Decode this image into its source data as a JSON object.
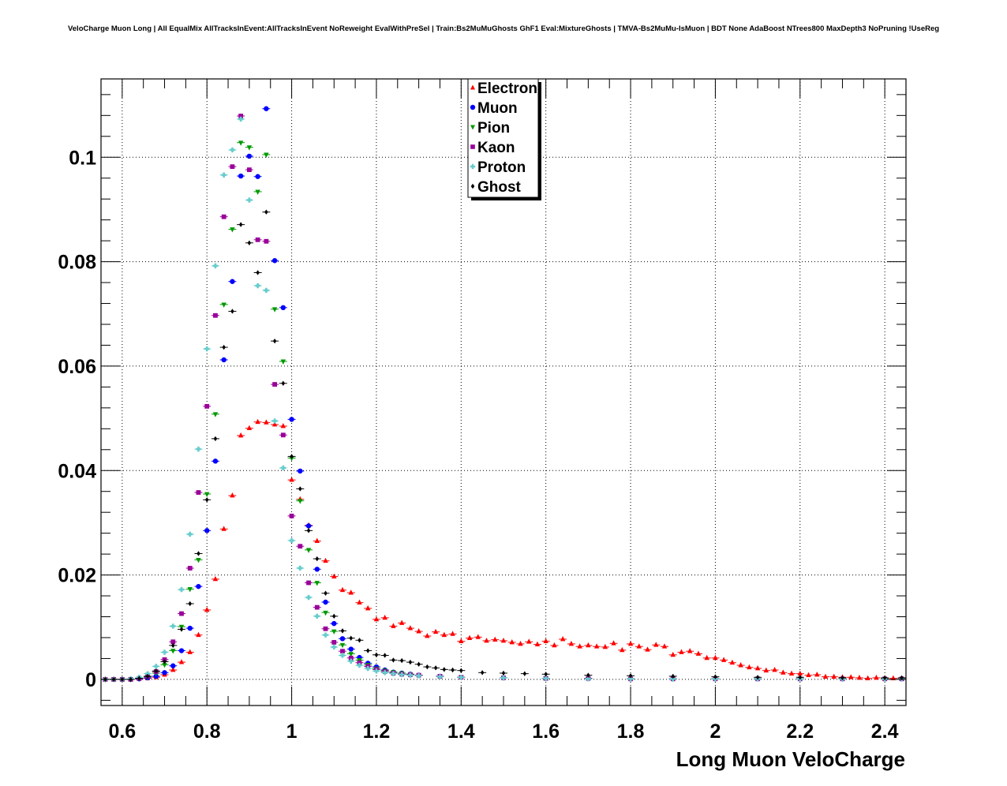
{
  "title": "VeloCharge Muon Long | All EqualMix AllTracksInEvent:AllTracksInEvent NoReweight EvalWithPreSel | Train:Bs2MuMuGhosts GhF1 Eval:MixtureGhosts | TMVA-Bs2MuMu-IsMuon | BDT None AdaBoost NTrees800 MaxDepth3 NoPruning !UseReg",
  "colors": {
    "Electron": "#ff0000",
    "Muon": "#0000ff",
    "Pion": "#009900",
    "Kaon": "#990099",
    "Proton": "#66cccc",
    "Ghost": "#000000"
  },
  "chart_data": {
    "type": "scatter",
    "title": "VeloCharge Muon Long | All EqualMix AllTracksInEvent:AllTracksInEvent NoReweight EvalWithPreSel | Train:Bs2MuMuGhosts GhF1 Eval:MixtureGhosts | TMVA-Bs2MuMu-IsMuon | BDT None AdaBoost NTrees800 MaxDepth3 NoPruning !UseReg",
    "xlabel": "Long Muon VeloCharge",
    "ylabel": "",
    "xlim": [
      0.55,
      2.45
    ],
    "ylim": [
      -0.005,
      0.115
    ],
    "grid": true,
    "legend_position": "top-center",
    "x_ticks": [
      "0.6",
      "0.8",
      "1",
      "1.2",
      "1.4",
      "1.6",
      "1.8",
      "2",
      "2.2",
      "2.4"
    ],
    "y_ticks": [
      "0",
      "0.02",
      "0.04",
      "0.06",
      "0.08",
      "0.1"
    ],
    "series": [
      {
        "name": "Electron",
        "marker": "triangle-up",
        "x": [
          0.56,
          0.58,
          0.6,
          0.62,
          0.64,
          0.66,
          0.68,
          0.7,
          0.72,
          0.74,
          0.76,
          0.78,
          0.8,
          0.82,
          0.84,
          0.86,
          0.88,
          0.9,
          0.92,
          0.94,
          0.96,
          0.98,
          1.0,
          1.02,
          1.04,
          1.06,
          1.08,
          1.1,
          1.12,
          1.14,
          1.16,
          1.18,
          1.2,
          1.22,
          1.24,
          1.26,
          1.28,
          1.3,
          1.32,
          1.34,
          1.36,
          1.38,
          1.4,
          1.42,
          1.44,
          1.46,
          1.48,
          1.5,
          1.52,
          1.54,
          1.56,
          1.58,
          1.6,
          1.62,
          1.64,
          1.66,
          1.68,
          1.7,
          1.72,
          1.74,
          1.76,
          1.78,
          1.8,
          1.82,
          1.84,
          1.86,
          1.88,
          1.9,
          1.92,
          1.94,
          1.96,
          1.98,
          2.0,
          2.02,
          2.04,
          2.06,
          2.08,
          2.1,
          2.12,
          2.14,
          2.16,
          2.18,
          2.2,
          2.22,
          2.24,
          2.26,
          2.28,
          2.3,
          2.32,
          2.34,
          2.36,
          2.38,
          2.4,
          2.42,
          2.44
        ],
        "y": [
          0,
          0,
          0,
          0,
          0.0001,
          0.0002,
          0.0004,
          0.0009,
          0.0018,
          0.0033,
          0.0052,
          0.0085,
          0.0133,
          0.0192,
          0.0288,
          0.0352,
          0.0467,
          0.0481,
          0.0493,
          0.0492,
          0.0488,
          0.0485,
          0.0382,
          0.0345,
          0.0295,
          0.0265,
          0.0227,
          0.0197,
          0.0171,
          0.0166,
          0.0147,
          0.0136,
          0.0115,
          0.0118,
          0.0102,
          0.0108,
          0.0098,
          0.0092,
          0.0083,
          0.0091,
          0.0085,
          0.0087,
          0.0073,
          0.0079,
          0.0081,
          0.0074,
          0.0076,
          0.0074,
          0.0071,
          0.0068,
          0.0072,
          0.0067,
          0.0073,
          0.0065,
          0.0077,
          0.0068,
          0.0063,
          0.0065,
          0.0063,
          0.0062,
          0.0069,
          0.0056,
          0.0068,
          0.0063,
          0.0057,
          0.0066,
          0.0063,
          0.0047,
          0.0052,
          0.0054,
          0.0049,
          0.0041,
          0.0041,
          0.0037,
          0.0032,
          0.0027,
          0.0023,
          0.0021,
          0.0017,
          0.0018,
          0.0013,
          0.0011,
          0.0011,
          0.0008,
          0.0009,
          0.0005,
          0.0005,
          0.0004,
          0.0004,
          0.0003,
          0.0002,
          0.0003,
          0.0002,
          0.0002,
          0.0002
        ]
      },
      {
        "name": "Muon",
        "marker": "circle",
        "x": [
          0.56,
          0.58,
          0.6,
          0.62,
          0.64,
          0.66,
          0.68,
          0.7,
          0.72,
          0.74,
          0.76,
          0.78,
          0.8,
          0.82,
          0.84,
          0.86,
          0.88,
          0.9,
          0.92,
          0.94,
          0.96,
          0.98,
          1.0,
          1.02,
          1.04,
          1.06,
          1.08,
          1.1,
          1.12,
          1.14,
          1.16,
          1.18,
          1.2,
          1.22,
          1.24,
          1.26,
          1.28,
          1.3,
          1.35,
          1.4,
          1.5,
          1.6,
          1.7,
          1.8,
          1.9,
          2.0,
          2.1,
          2.2,
          2.3,
          2.4,
          2.44
        ],
        "y": [
          0,
          0,
          0,
          0,
          0.0001,
          0.0003,
          0.0006,
          0.0013,
          0.0026,
          0.0055,
          0.0098,
          0.0178,
          0.0285,
          0.0418,
          0.0612,
          0.0762,
          0.0964,
          0.1002,
          0.0963,
          0.1093,
          0.0802,
          0.0712,
          0.0498,
          0.0399,
          0.0294,
          0.0211,
          0.0148,
          0.0107,
          0.0078,
          0.0058,
          0.0042,
          0.0031,
          0.0024,
          0.0018,
          0.0014,
          0.0012,
          0.001,
          0.0008,
          0.0006,
          0.0004,
          0.0003,
          0.0002,
          0.0002,
          0.0001,
          0.0001,
          0.0001,
          0.0001,
          0.0001,
          0.0001,
          0.0001,
          0.0001
        ]
      },
      {
        "name": "Pion",
        "marker": "triangle-down",
        "x": [
          0.56,
          0.58,
          0.6,
          0.62,
          0.64,
          0.66,
          0.68,
          0.7,
          0.72,
          0.74,
          0.76,
          0.78,
          0.8,
          0.82,
          0.84,
          0.86,
          0.88,
          0.9,
          0.92,
          0.94,
          0.96,
          0.98,
          1.0,
          1.02,
          1.04,
          1.06,
          1.08,
          1.1,
          1.12,
          1.14,
          1.16,
          1.18,
          1.2,
          1.22,
          1.24,
          1.26,
          1.28,
          1.3,
          1.35,
          1.4,
          1.5,
          1.6,
          1.7,
          1.8,
          1.9,
          2.0,
          2.1,
          2.2,
          2.3,
          2.4,
          2.44
        ],
        "y": [
          0,
          0,
          0,
          0,
          0.0002,
          0.0005,
          0.0012,
          0.0028,
          0.0055,
          0.0101,
          0.0173,
          0.0229,
          0.0355,
          0.0508,
          0.0718,
          0.0862,
          0.1028,
          0.1019,
          0.0934,
          0.1005,
          0.0709,
          0.0609,
          0.0424,
          0.0342,
          0.0248,
          0.0185,
          0.0128,
          0.0092,
          0.0066,
          0.0049,
          0.0037,
          0.0028,
          0.0021,
          0.0017,
          0.0014,
          0.0012,
          0.001,
          0.0008,
          0.0006,
          0.0004,
          0.0003,
          0.0002,
          0.0002,
          0.0001,
          0.0001,
          0.0001,
          0.0001,
          0.0001,
          0.0001,
          0.0001,
          0.0001
        ]
      },
      {
        "name": "Kaon",
        "marker": "square",
        "x": [
          0.56,
          0.58,
          0.6,
          0.62,
          0.64,
          0.66,
          0.68,
          0.7,
          0.72,
          0.74,
          0.76,
          0.78,
          0.8,
          0.82,
          0.84,
          0.86,
          0.88,
          0.9,
          0.92,
          0.94,
          0.96,
          0.98,
          1.0,
          1.02,
          1.04,
          1.06,
          1.08,
          1.1,
          1.12,
          1.14,
          1.16,
          1.18,
          1.2,
          1.22,
          1.24,
          1.26,
          1.28,
          1.3,
          1.35,
          1.4,
          1.5,
          1.6,
          1.7,
          1.8,
          1.9,
          2.0,
          2.1,
          2.2,
          2.3,
          2.4,
          2.44
        ],
        "y": [
          0,
          0,
          0,
          0,
          0.0002,
          0.0006,
          0.0015,
          0.0038,
          0.0072,
          0.0126,
          0.0213,
          0.0358,
          0.0523,
          0.0697,
          0.0886,
          0.0982,
          0.1079,
          0.0976,
          0.0842,
          0.0839,
          0.0565,
          0.0468,
          0.0313,
          0.0255,
          0.0185,
          0.0138,
          0.0097,
          0.0071,
          0.0054,
          0.0041,
          0.0032,
          0.0025,
          0.0019,
          0.0015,
          0.0012,
          0.001,
          0.0009,
          0.0008,
          0.0006,
          0.0004,
          0.0003,
          0.0002,
          0.0002,
          0.0001,
          0.0001,
          0.0001,
          0.0001,
          0.0001,
          0.0001,
          0.0001,
          0.0001
        ]
      },
      {
        "name": "Proton",
        "marker": "cross",
        "x": [
          0.56,
          0.58,
          0.6,
          0.62,
          0.64,
          0.66,
          0.68,
          0.7,
          0.72,
          0.74,
          0.76,
          0.78,
          0.8,
          0.82,
          0.84,
          0.86,
          0.88,
          0.9,
          0.92,
          0.94,
          0.96,
          0.98,
          1.0,
          1.02,
          1.04,
          1.06,
          1.08,
          1.1,
          1.12,
          1.14,
          1.16,
          1.18,
          1.2,
          1.22,
          1.24,
          1.26,
          1.28,
          1.3,
          1.35,
          1.4,
          1.5,
          1.6,
          1.7,
          1.8,
          1.9,
          2.0,
          2.1,
          2.2,
          2.3,
          2.4,
          2.44
        ],
        "y": [
          0,
          0,
          0,
          0.0001,
          0.0004,
          0.0011,
          0.0025,
          0.0052,
          0.0102,
          0.0172,
          0.0278,
          0.0441,
          0.0633,
          0.0792,
          0.0966,
          0.1014,
          0.1073,
          0.0918,
          0.0754,
          0.0745,
          0.0495,
          0.0405,
          0.0266,
          0.0213,
          0.0157,
          0.0121,
          0.0085,
          0.0062,
          0.0046,
          0.0035,
          0.0027,
          0.0021,
          0.0016,
          0.0013,
          0.0011,
          0.0009,
          0.0008,
          0.0007,
          0.0005,
          0.0004,
          0.0003,
          0.0002,
          0.0001,
          0.0001,
          0.0001,
          0.0001,
          0.0001,
          0.0001,
          0.0001,
          0.0001,
          0.0001
        ]
      },
      {
        "name": "Ghost",
        "marker": "diamond",
        "x": [
          0.56,
          0.58,
          0.6,
          0.62,
          0.64,
          0.66,
          0.68,
          0.7,
          0.72,
          0.74,
          0.76,
          0.78,
          0.8,
          0.82,
          0.84,
          0.86,
          0.88,
          0.9,
          0.92,
          0.94,
          0.96,
          0.98,
          1.0,
          1.02,
          1.04,
          1.06,
          1.08,
          1.1,
          1.12,
          1.14,
          1.16,
          1.18,
          1.2,
          1.22,
          1.24,
          1.26,
          1.28,
          1.3,
          1.32,
          1.34,
          1.36,
          1.38,
          1.4,
          1.45,
          1.5,
          1.55,
          1.6,
          1.7,
          1.8,
          1.9,
          2.0,
          2.1,
          2.2,
          2.3,
          2.4,
          2.44
        ],
        "y": [
          0,
          0,
          0,
          0,
          0.0002,
          0.0006,
          0.0016,
          0.0034,
          0.0065,
          0.0096,
          0.0145,
          0.0241,
          0.0344,
          0.0461,
          0.0636,
          0.0705,
          0.0871,
          0.0836,
          0.0779,
          0.0895,
          0.0648,
          0.0567,
          0.0427,
          0.0365,
          0.0285,
          0.0231,
          0.0165,
          0.0121,
          0.0093,
          0.0079,
          0.0075,
          0.0055,
          0.0047,
          0.0046,
          0.0037,
          0.0036,
          0.0033,
          0.0029,
          0.0024,
          0.0022,
          0.0019,
          0.0018,
          0.0017,
          0.0013,
          0.0012,
          0.0011,
          0.001,
          0.0008,
          0.0007,
          0.0006,
          0.0005,
          0.0004,
          0.0004,
          0.0003,
          0.0003,
          0.0003
        ]
      }
    ]
  }
}
